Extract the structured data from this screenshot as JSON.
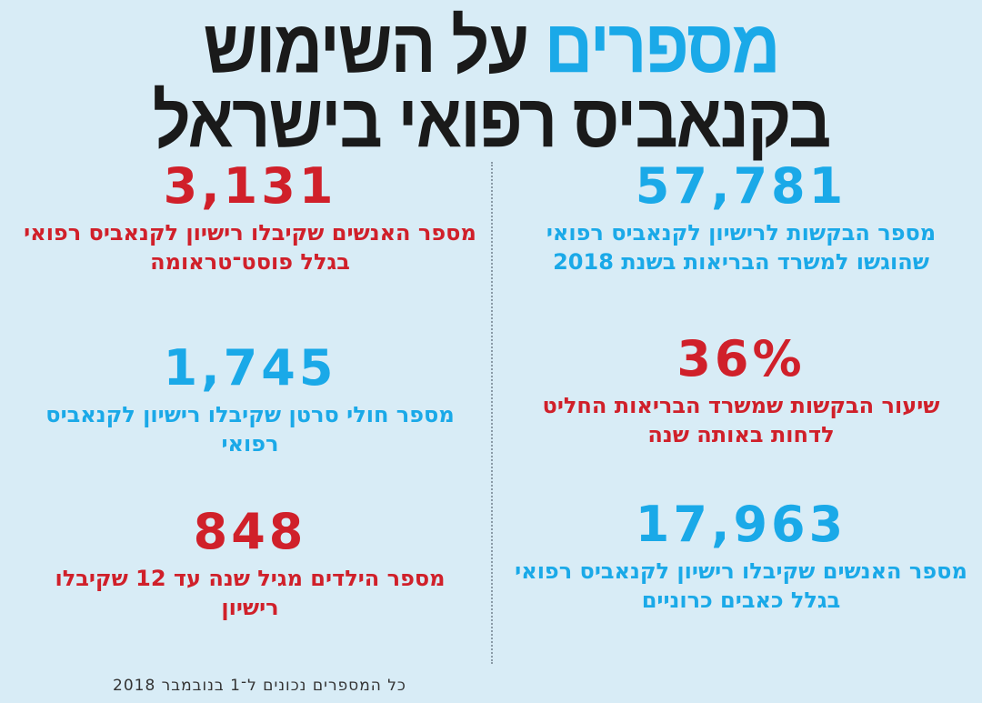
{
  "title": {
    "accent_word": "מספרים",
    "line1_rest": "על השימוש",
    "line2": "בקנאביס רפואי בישראל",
    "accent_color": "#1aa9e8"
  },
  "stats": [
    {
      "number": "57,781",
      "description": "מספר הבקשות לרישיון לקנאביס רפואי שהוגשו למשרד הבריאות בשנת 2018",
      "color": "#1aa9e8"
    },
    {
      "number": "3,131",
      "description": "מספר האנשים שקיבלו רישיון לקנאביס רפואי בגלל פוסט־טראומה",
      "color": "#d0202a"
    },
    {
      "number": "36%",
      "description": "שיעור הבקשות שמשרד הבריאות החליט לדחות באותה שנה",
      "color": "#d0202a"
    },
    {
      "number": "1,745",
      "description": "מספר חולי סרטן שקיבלו רישיון לקנאביס רפואי",
      "color": "#1aa9e8"
    },
    {
      "number": "17,963",
      "description": "מספר האנשים שקיבלו רישיון לקנאביס רפואי בגלל כאבים כרוניים",
      "color": "#1aa9e8"
    },
    {
      "number": "848",
      "description": "מספר הילדים מגיל שנה עד 12 שקיבלו רישיון",
      "color": "#d0202a"
    }
  ],
  "footnote": "כל המספרים נכונים ל־1 בנובמבר 2018"
}
